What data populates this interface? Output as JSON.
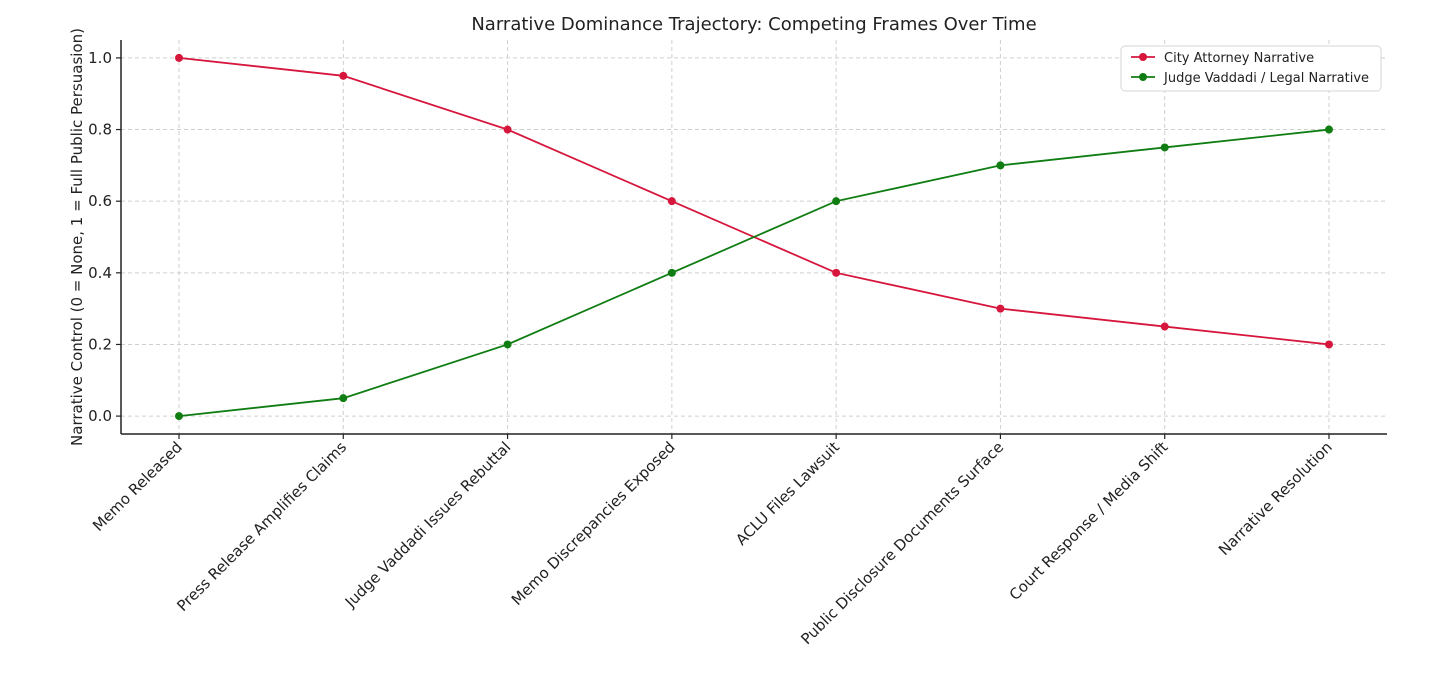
{
  "chart_data": {
    "type": "line",
    "title": "Narrative Dominance Trajectory: Competing Frames Over Time",
    "xlabel": "",
    "ylabel": "Narrative Control (0 = None, 1 = Full Public Persuasion)",
    "categories": [
      "Memo Released",
      "Press Release Amplifies Claims",
      "Judge Vaddadi Issues Rebuttal",
      "Memo Discrepancies Exposed",
      "ACLU Files Lawsuit",
      "Public Disclosure Documents Surface",
      "Court Response / Media Shift",
      "Narrative Resolution"
    ],
    "ylim": [
      -0.05,
      1.05
    ],
    "yticks": [
      "0.0",
      "0.2",
      "0.4",
      "0.6",
      "0.8",
      "1.0"
    ],
    "grid": true,
    "legend_position": "top-right",
    "series": [
      {
        "name": "City Attorney Narrative",
        "color": "#d6163c",
        "values": [
          1.0,
          0.95,
          0.8,
          0.6,
          0.4,
          0.3,
          0.25,
          0.2
        ]
      },
      {
        "name": "Judge Vaddadi / Legal Narrative",
        "color": "#0f7d12",
        "values": [
          0.0,
          0.05,
          0.2,
          0.4,
          0.6,
          0.7,
          0.75,
          0.8
        ]
      }
    ]
  }
}
